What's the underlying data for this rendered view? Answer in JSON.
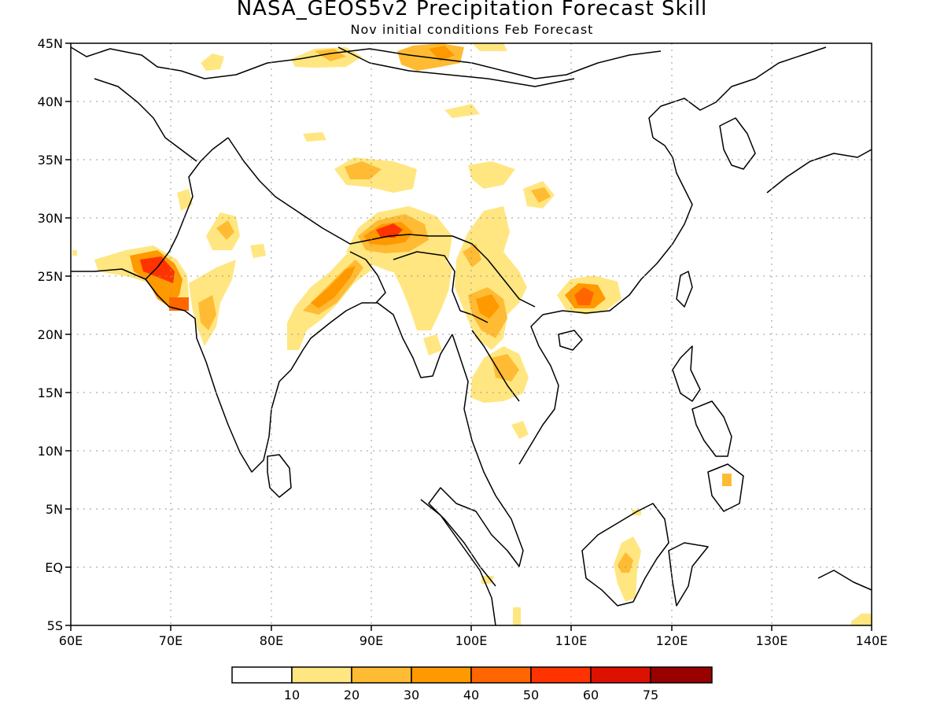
{
  "title": "NASA_GEOS5v2 Precipitation Forecast Skill",
  "subtitle": "Nov initial conditions  Feb Forecast",
  "axes": {
    "lon_ticks": [
      "60E",
      "70E",
      "80E",
      "90E",
      "100E",
      "110E",
      "120E",
      "130E",
      "140E"
    ],
    "lat_ticks": [
      "45N",
      "40N",
      "35N",
      "30N",
      "25N",
      "20N",
      "15N",
      "10N",
      "5N",
      "EQ",
      "5S"
    ],
    "lon_range": [
      60,
      140
    ],
    "lat_range": [
      -5,
      45
    ]
  },
  "legend": {
    "colors": [
      "#ffffff",
      "#ffe680",
      "#ffbb33",
      "#ff9900",
      "#ff6600",
      "#ff3300",
      "#dd1100",
      "#990000"
    ],
    "labels": [
      "10",
      "20",
      "30",
      "40",
      "50",
      "60",
      "75"
    ]
  },
  "chart_data": {
    "type": "heatmap",
    "title": "NASA_GEOS5v2 Precipitation Forecast Skill",
    "subtitle": "Nov initial conditions  Feb Forecast",
    "xlabel": "",
    "ylabel": "",
    "xlim": [
      60,
      140
    ],
    "ylim": [
      -5,
      45
    ],
    "levels": [
      10,
      20,
      30,
      40,
      50,
      60,
      75
    ],
    "grid": true,
    "regions": [
      {
        "lon": 68,
        "lat": 25.5,
        "level": 60
      },
      {
        "lon": 71,
        "lat": 22.5,
        "level": 50
      },
      {
        "lon": 75.5,
        "lat": 29,
        "level": 30
      },
      {
        "lon": 73,
        "lat": 21.5,
        "level": 30
      },
      {
        "lon": 85,
        "lat": 22.5,
        "level": 40
      },
      {
        "lon": 87.5,
        "lat": 26,
        "level": 40
      },
      {
        "lon": 91.5,
        "lat": 29,
        "level": 60
      },
      {
        "lon": 89,
        "lat": 34,
        "level": 30
      },
      {
        "lon": 98,
        "lat": 44,
        "level": 30
      },
      {
        "lon": 93.5,
        "lat": 27,
        "level": 30
      },
      {
        "lon": 100.5,
        "lat": 26,
        "level": 20
      },
      {
        "lon": 101,
        "lat": 21.5,
        "level": 30
      },
      {
        "lon": 102,
        "lat": 17,
        "level": 20
      },
      {
        "lon": 111,
        "lat": 23,
        "level": 60
      },
      {
        "lon": 106,
        "lat": 32,
        "level": 20
      },
      {
        "lon": 125.8,
        "lat": 7.5,
        "level": 30
      },
      {
        "lon": 114.5,
        "lat": 0,
        "level": 20
      },
      {
        "lon": 139,
        "lat": -4.5,
        "level": 20
      }
    ]
  }
}
